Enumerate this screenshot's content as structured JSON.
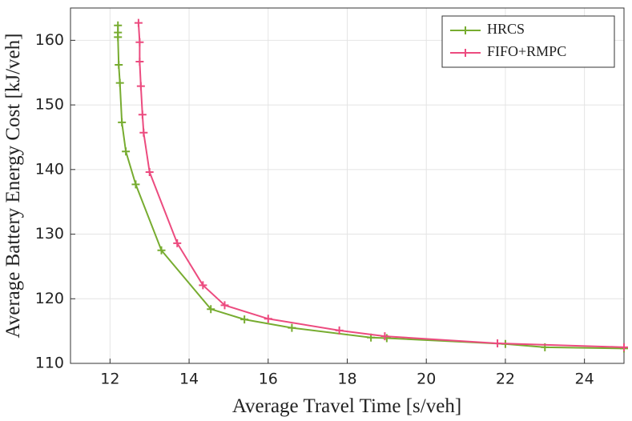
{
  "chart_data": {
    "type": "line",
    "x_label": "Average Travel Time [s/veh]",
    "y_label": "Average Battery Energy Cost [kJ/veh]",
    "xlim": [
      11,
      25
    ],
    "xticks": [
      12,
      14,
      16,
      18,
      20,
      22,
      24
    ],
    "ylim": [
      110,
      165
    ],
    "yticks": [
      110,
      120,
      130,
      140,
      150,
      160
    ],
    "grid": true,
    "legend": "top-right",
    "series": [
      {
        "name": "HRCS",
        "color": "#77ac30",
        "x": [
          12.2,
          12.2,
          12.2,
          12.22,
          12.25,
          12.3,
          12.4,
          12.65,
          13.3,
          14.55,
          15.4,
          16.6,
          18.6,
          19.0,
          22.0,
          23.0,
          25.0
        ],
        "values": [
          162.3,
          161.2,
          160.5,
          156.2,
          153.4,
          147.3,
          142.8,
          137.7,
          127.5,
          118.4,
          116.8,
          115.5,
          114.0,
          113.9,
          113.0,
          112.5,
          112.3
        ]
      },
      {
        "name": "FIFO+RMPC",
        "color": "#ec4b7f",
        "x": [
          12.72,
          12.75,
          12.75,
          12.78,
          12.82,
          12.85,
          13.0,
          13.7,
          14.35,
          14.9,
          16.0,
          17.8,
          18.95,
          21.8,
          25.0
        ],
        "values": [
          162.7,
          159.7,
          156.7,
          152.9,
          148.5,
          145.7,
          139.6,
          128.6,
          122.1,
          119.0,
          116.9,
          115.1,
          114.2,
          113.1,
          112.5
        ]
      }
    ]
  }
}
